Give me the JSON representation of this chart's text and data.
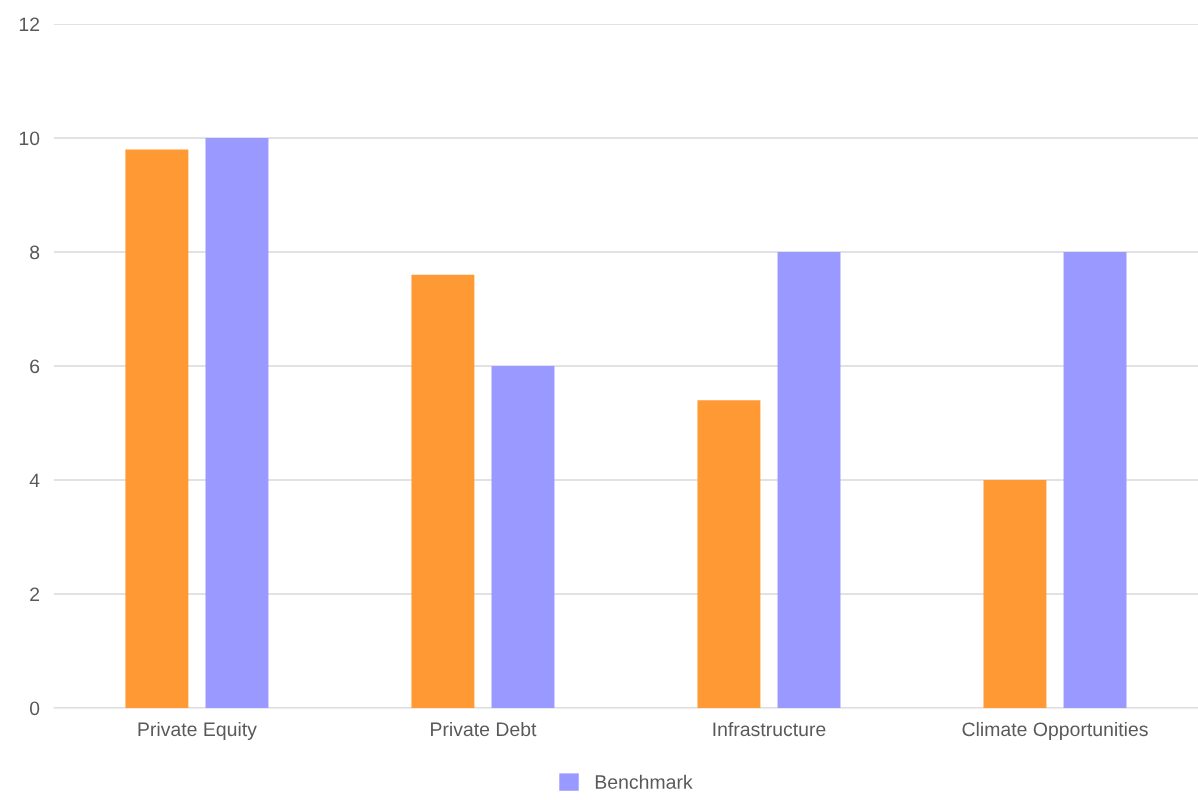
{
  "chart_data": {
    "type": "bar",
    "categories": [
      "Private Equity",
      "Private Debt",
      "Infrastructure",
      "Climate Opportunities"
    ],
    "series": [
      {
        "color": "#ff9933",
        "values": [
          9.8,
          7.6,
          5.4,
          4.0
        ]
      },
      {
        "name": "Benchmark",
        "color": "#9999ff",
        "values": [
          10,
          6,
          8,
          8
        ]
      }
    ],
    "ylim": [
      0,
      12
    ],
    "yticks": [
      0,
      2,
      4,
      6,
      8,
      10,
      12
    ],
    "grid": "y",
    "legend": "bottom"
  }
}
